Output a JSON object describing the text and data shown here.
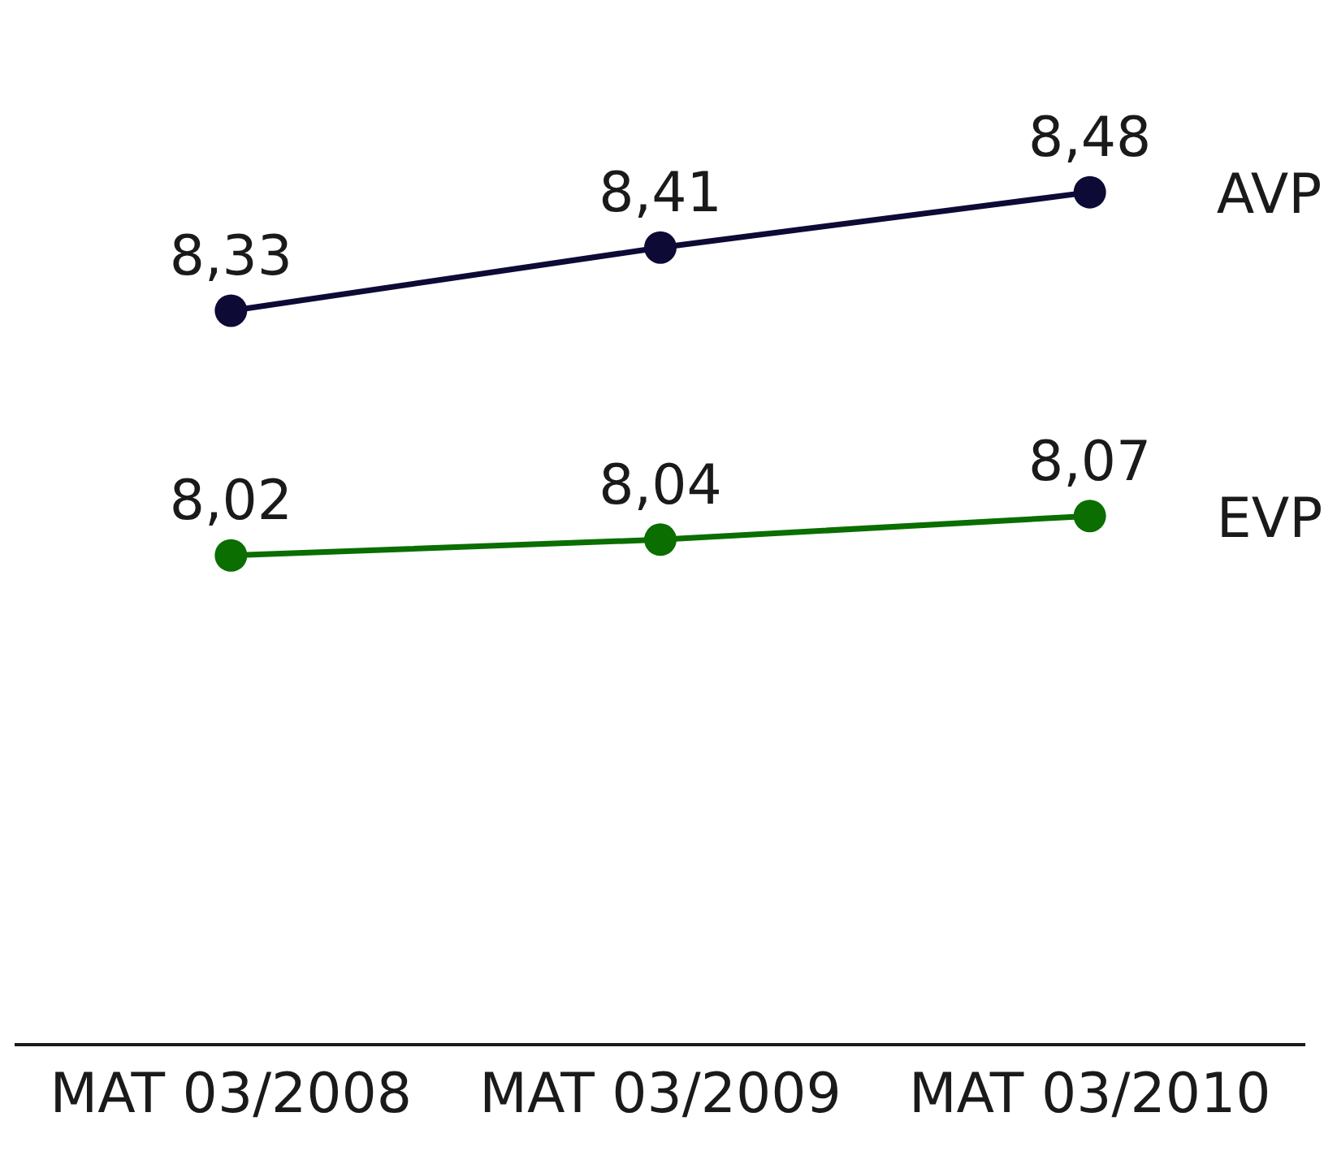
{
  "chart_data": {
    "type": "line",
    "categories": [
      "MAT 03/2008",
      "MAT 03/2009",
      "MAT 03/2010"
    ],
    "series": [
      {
        "name": "AVP",
        "color": "#0d0a36",
        "values": [
          8.33,
          8.41,
          8.48
        ],
        "value_labels": [
          "8,33",
          "8,41",
          "8,48"
        ]
      },
      {
        "name": "EVP",
        "color": "#0a6e00",
        "values": [
          8.02,
          8.04,
          8.07
        ],
        "value_labels": [
          "8,02",
          "8,04",
          "8,07"
        ]
      }
    ],
    "tick_labels": "x",
    "marker": "circle",
    "line_style": "solid",
    "grid": false,
    "legend": false
  }
}
